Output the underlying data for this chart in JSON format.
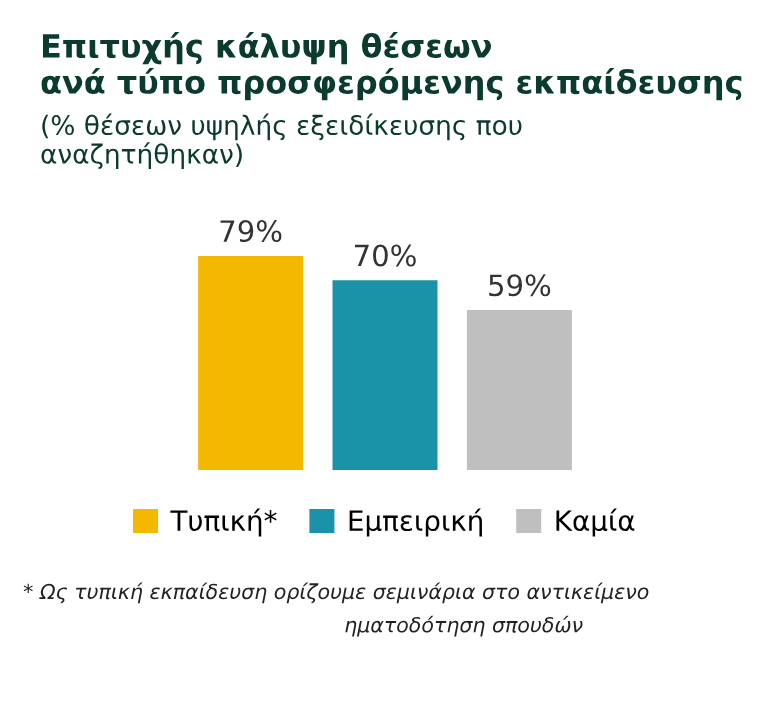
{
  "chart_data": {
    "type": "bar",
    "title": "Επιτυχής κάλυψη θέσεων\nανά τύπο προσφερόμενης εκπαίδευσης",
    "subtitle": "(% θέσεων υψηλής εξειδίκευσης που\nαναζητήθηκαν)",
    "categories": [
      null
    ],
    "series": [
      {
        "name": "Τυπική*",
        "color": "#f5b800",
        "values": [
          79
        ],
        "value_labels": [
          "79%"
        ]
      },
      {
        "name": "Εμπειρική",
        "color": "#1a93a8",
        "values": [
          70
        ],
        "value_labels": [
          "70%"
        ]
      },
      {
        "name": "Καμία",
        "color": "#bfbfbf",
        "values": [
          59
        ],
        "value_labels": [
          "59%"
        ]
      }
    ],
    "legend": "bottom",
    "grid": false,
    "annotations": [
      "* Ως τυπική εκπαίδευση ορίζουμε σεμινάρια στο αντικείμενο",
      "ηματοδότηση σπουδών"
    ]
  }
}
